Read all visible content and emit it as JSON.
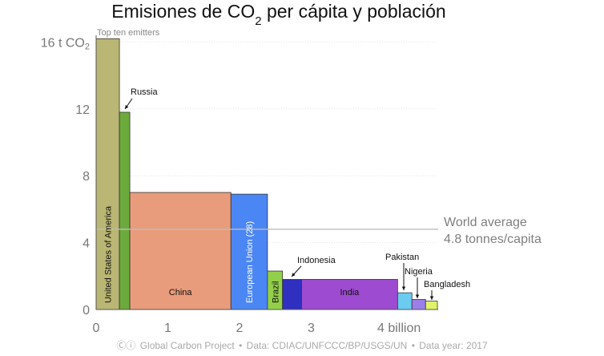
{
  "chart_data": {
    "type": "bar",
    "variant": "variable-width",
    "title": "Emisiones de CO₂ per cápita y población",
    "subtitle": "Top ten emitters",
    "ylim": [
      0,
      16.5
    ],
    "xlim": [
      0,
      4.7
    ],
    "yticks": [
      {
        "value": 0,
        "label": "0"
      },
      {
        "value": 4,
        "label": "4"
      },
      {
        "value": 8,
        "label": "8"
      },
      {
        "value": 12,
        "label": "12"
      },
      {
        "value": 16,
        "label": "16 t CO₂"
      }
    ],
    "xticks": [
      {
        "value": 0,
        "label": "0"
      },
      {
        "value": 1,
        "label": "1"
      },
      {
        "value": 2,
        "label": "2"
      },
      {
        "value": 3,
        "label": "3"
      },
      {
        "value": 4,
        "label": "4 billion"
      }
    ],
    "grid": true,
    "reference_line": {
      "value": 4.8,
      "label_line1": "World average",
      "label_line2": "4.8 tonnes/capita",
      "color": "#bdbdbd"
    },
    "bars": [
      {
        "name": "United States of America",
        "population": 0.325,
        "per_capita": 16.2,
        "color": "#bab673",
        "label_mode": "inside-vertical"
      },
      {
        "name": "Russia",
        "population": 0.145,
        "per_capita": 11.8,
        "color": "#6caa3c",
        "label_mode": "callout"
      },
      {
        "name": "China",
        "population": 1.41,
        "per_capita": 7.0,
        "color": "#e99c7b",
        "label_mode": "inside"
      },
      {
        "name": "European Union (28)",
        "population": 0.51,
        "per_capita": 6.9,
        "color": "#4b86f5",
        "label_mode": "inside-vertical"
      },
      {
        "name": "Brazil",
        "population": 0.21,
        "per_capita": 2.3,
        "color": "#93d04a",
        "label_mode": "inside-vertical"
      },
      {
        "name": "Indonesia",
        "population": 0.265,
        "per_capita": 1.8,
        "color": "#2f2fc0",
        "label_mode": "callout"
      },
      {
        "name": "India",
        "population": 1.34,
        "per_capita": 1.8,
        "color": "#9d4bd0",
        "label_mode": "inside"
      },
      {
        "name": "Pakistan",
        "population": 0.2,
        "per_capita": 1.0,
        "color": "#6bcbf0",
        "label_mode": "callout"
      },
      {
        "name": "Nigeria",
        "population": 0.19,
        "per_capita": 0.6,
        "color": "#9b7fe8",
        "label_mode": "callout"
      },
      {
        "name": "Bangladesh",
        "population": 0.165,
        "per_capita": 0.5,
        "color": "#e2f26a",
        "label_mode": "callout"
      }
    ]
  },
  "footer": {
    "license": "Ⓒⓘ",
    "source": "Global Carbon Project",
    "sep": "•",
    "data": "Data: CDIAC/UNFCCC/BP/USGS/UN",
    "year": "Data year: 2017"
  }
}
